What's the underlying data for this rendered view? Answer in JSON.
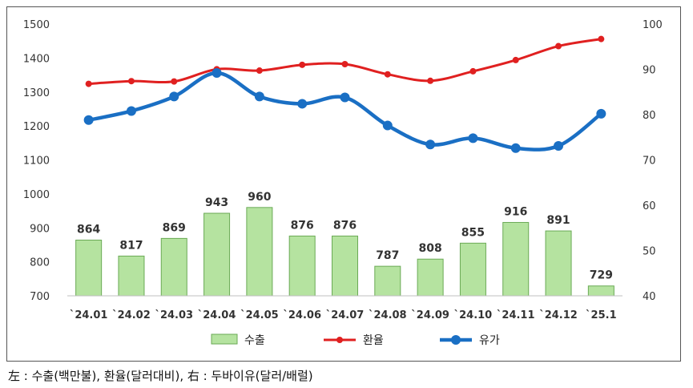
{
  "chart_data": {
    "type": "bar+line",
    "categories": [
      "`24.01",
      "`24.02",
      "`24.03",
      "`24.04",
      "`24.05",
      "`24.06",
      "`24.07",
      "`24.08",
      "`24.09",
      "`24.10",
      "`24.11",
      "`24.12",
      "`25.1"
    ],
    "left_axis": {
      "min": 700,
      "max": 1500,
      "ticks": [
        700,
        800,
        900,
        1000,
        1100,
        1200,
        1300,
        1400,
        1500
      ]
    },
    "right_axis": {
      "min": 40,
      "max": 100,
      "ticks": [
        40,
        50,
        60,
        70,
        80,
        90,
        100
      ]
    },
    "series": [
      {
        "name": "수출",
        "kind": "bar",
        "axis": "left",
        "color": "#b5e3a0",
        "border": "#6aaa55",
        "values": [
          864,
          817,
          869,
          943,
          960,
          876,
          876,
          787,
          808,
          855,
          916,
          891,
          729
        ]
      },
      {
        "name": "환율",
        "kind": "line",
        "axis": "left",
        "color": "#e02020",
        "values": [
          1324,
          1332,
          1331,
          1367,
          1363,
          1380,
          1382,
          1352,
          1333,
          1361,
          1394,
          1435,
          1456
        ]
      },
      {
        "name": "유가",
        "kind": "line",
        "axis": "right",
        "color": "#1a6fc4",
        "values": [
          78.8,
          80.8,
          84.0,
          89.2,
          84.0,
          82.4,
          83.8,
          77.6,
          73.4,
          74.8,
          72.6,
          73.1,
          80.2
        ]
      }
    ],
    "legend_position": "bottom",
    "grid": false
  },
  "caption": "左 : 수출(백만불), 환율(달러대비), 右 : 두바이유(달러/배럴)"
}
